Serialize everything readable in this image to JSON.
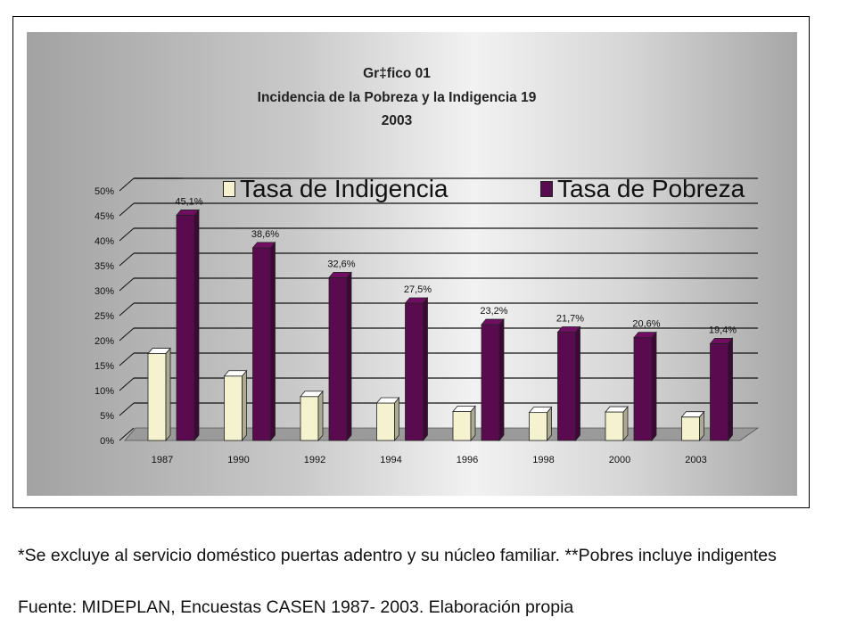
{
  "chart_data": {
    "type": "bar",
    "title": [
      "Gr‡fico 01",
      "Incidencia de la Pobreza y la Indigencia 19",
      "2003"
    ],
    "categories": [
      "1987",
      "1990",
      "1992",
      "1994",
      "1996",
      "1998",
      "2000",
      "2003"
    ],
    "series": [
      {
        "name": "Tasa de Indigencia",
        "color": "#f5f3cf",
        "values": [
          17.4,
          12.9,
          8.8,
          7.5,
          5.8,
          5.6,
          5.7,
          4.7
        ],
        "labels": []
      },
      {
        "name": "Tasa de Pobreza",
        "color": "#5a0a4e",
        "values": [
          45.1,
          38.6,
          32.6,
          27.5,
          23.2,
          21.7,
          20.6,
          19.4
        ],
        "labels": [
          "45,1%",
          "38,6%",
          "32,6%",
          "27,5%",
          "23,2%",
          "21,7%",
          "20,6%",
          "19,4%"
        ]
      }
    ],
    "yticks": [
      "0%",
      "5%",
      "10%",
      "15%",
      "20%",
      "25%",
      "30%",
      "35%",
      "40%",
      "45%",
      "50%"
    ],
    "ylim": [
      0,
      50
    ],
    "grid": true,
    "legend_position": "top"
  },
  "footnotes": {
    "note": "*Se excluye al servicio doméstico puertas adentro y su núcleo familiar.   **Pobres incluye indigentes",
    "source": "Fuente: MIDEPLAN, Encuestas CASEN 1987- 2003. Elaboración propia"
  }
}
